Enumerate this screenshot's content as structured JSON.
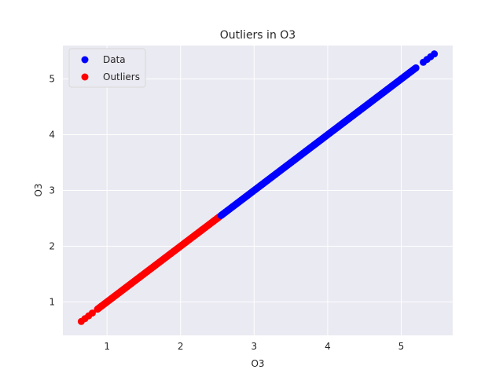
{
  "chart_data": {
    "type": "scatter",
    "title": "Outliers in O3",
    "xlabel": "O3",
    "ylabel": "O3",
    "xlim": [
      0.4,
      5.7
    ],
    "ylim": [
      0.4,
      5.6
    ],
    "xticks": [
      1,
      2,
      3,
      4,
      5
    ],
    "yticks": [
      1,
      2,
      3,
      4,
      5
    ],
    "grid": true,
    "legend_position": "top-left",
    "background_color": "#EAEAF2",
    "series": [
      {
        "name": "Data",
        "color": "#0000FF",
        "x_range": [
          2.55,
          5.2
        ],
        "extra_points": [
          [
            5.3,
            5.3
          ],
          [
            5.35,
            5.35
          ],
          [
            5.4,
            5.4
          ],
          [
            5.45,
            5.45
          ]
        ]
      },
      {
        "name": "Outliers",
        "color": "#FF0000",
        "x_range": [
          0.87,
          2.53
        ],
        "extra_points": [
          [
            0.65,
            0.65
          ],
          [
            0.7,
            0.7
          ],
          [
            0.75,
            0.75
          ],
          [
            0.8,
            0.8
          ]
        ]
      }
    ]
  }
}
